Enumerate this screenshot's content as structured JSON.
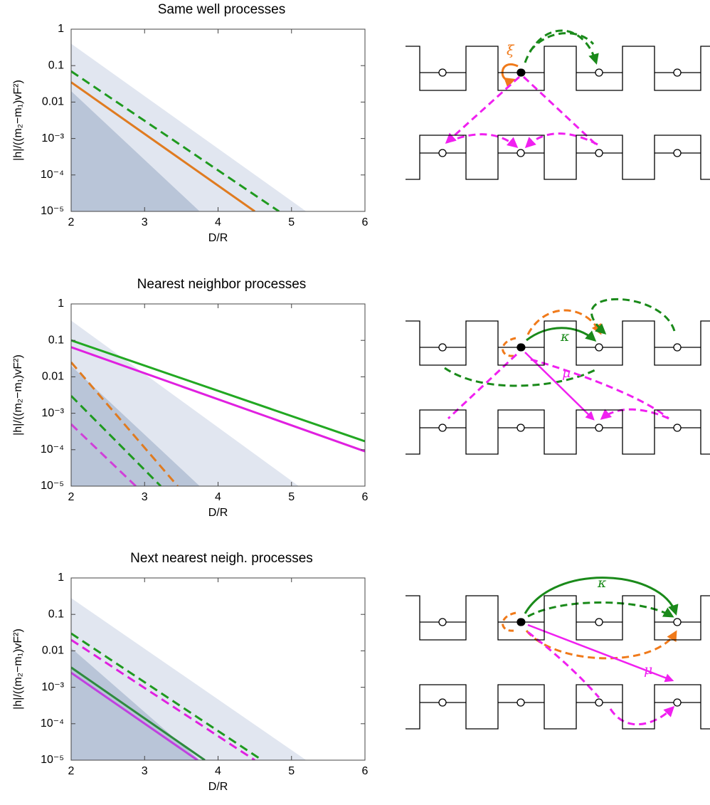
{
  "chart_data": [
    {
      "type": "line",
      "title": "Same well processes",
      "xlabel": "D/R",
      "ylabel": "|h|/((m₂−m₁)vF²)",
      "xlim": [
        2,
        6
      ],
      "ylim": [
        1e-05,
        1
      ],
      "log_y": true,
      "xticks": [
        2,
        3,
        4,
        5,
        6
      ],
      "yticks": [
        1,
        0.1,
        0.01,
        {
          "value": 0.001,
          "label": "10⁻³"
        },
        {
          "value": 0.0001,
          "label": "10⁻⁴"
        },
        {
          "value": 1e-05,
          "label": "10⁻⁵"
        }
      ],
      "shaded_regions": [
        {
          "color": "#e1e6f0",
          "x": [
            2,
            5.2,
            2
          ],
          "values": [
            0.4,
            1e-05,
            1e-05
          ]
        },
        {
          "color": "#b9c5d8",
          "x": [
            2,
            3.75,
            2
          ],
          "values": [
            0.02,
            1e-05,
            1e-05
          ]
        }
      ],
      "series": [
        {
          "color": "#e07b20",
          "dashed": false,
          "x": [
            2,
            4.5
          ],
          "values": [
            0.035,
            1e-05
          ]
        },
        {
          "color": "#1f9a1f",
          "dashed": true,
          "x": [
            2,
            4.83
          ],
          "values": [
            0.07,
            1e-05
          ]
        }
      ]
    },
    {
      "type": "line",
      "title": "Nearest neighbor processes",
      "xlabel": "D/R",
      "ylabel": "|h|/((m₂−m₁)vF²)",
      "xlim": [
        2,
        6
      ],
      "ylim": [
        1e-05,
        1
      ],
      "log_y": true,
      "xticks": [
        2,
        3,
        4,
        5,
        6
      ],
      "yticks": [
        1,
        0.1,
        0.01,
        {
          "value": 0.001,
          "label": "10⁻³"
        },
        {
          "value": 0.0001,
          "label": "10⁻⁴"
        },
        {
          "value": 1e-05,
          "label": "10⁻⁵"
        }
      ],
      "shaded_regions": [
        {
          "color": "#e1e6f0",
          "x": [
            2,
            5.1,
            2
          ],
          "values": [
            0.35,
            1e-05,
            1e-05
          ]
        },
        {
          "color": "#b9c5d8",
          "x": [
            2,
            3.75,
            2
          ],
          "values": [
            0.02,
            1e-05,
            1e-05
          ]
        }
      ],
      "series": [
        {
          "color": "#22a822",
          "dashed": false,
          "x": [
            2,
            6
          ],
          "values": [
            0.1,
            0.00017
          ]
        },
        {
          "color": "#e020e0",
          "dashed": false,
          "x": [
            2,
            6
          ],
          "values": [
            0.065,
            9e-05
          ]
        },
        {
          "color": "#e07b20",
          "dashed": true,
          "x": [
            2,
            3.45
          ],
          "values": [
            0.025,
            1e-05
          ]
        },
        {
          "color": "#1f9a1f",
          "dashed": true,
          "x": [
            2,
            3.22
          ],
          "values": [
            0.003,
            1e-05
          ]
        },
        {
          "color": "#d040d8",
          "dashed": true,
          "x": [
            2,
            2.88
          ],
          "values": [
            0.0005,
            1e-05
          ]
        }
      ]
    },
    {
      "type": "line",
      "title": "Next nearest neigh. processes",
      "xlabel": "D/R",
      "ylabel": "|h|/((m₂−m₁)vF²)",
      "xlim": [
        2,
        6
      ],
      "ylim": [
        1e-05,
        1
      ],
      "log_y": true,
      "xticks": [
        2,
        3,
        4,
        5,
        6
      ],
      "yticks": [
        1,
        0.1,
        0.01,
        {
          "value": 0.001,
          "label": "10⁻³"
        },
        {
          "value": 0.0001,
          "label": "10⁻⁴"
        },
        {
          "value": 1e-05,
          "label": "10⁻⁵"
        }
      ],
      "shaded_regions": [
        {
          "color": "#e1e6f0",
          "x": [
            2,
            5.2,
            2
          ],
          "values": [
            0.28,
            1e-05,
            1e-05
          ]
        },
        {
          "color": "#b9c5d8",
          "x": [
            2,
            3.75,
            2
          ],
          "values": [
            0.012,
            1e-05,
            1e-05
          ]
        }
      ],
      "series": [
        {
          "color": "#1f9a1f",
          "dashed": true,
          "x": [
            2,
            4.6
          ],
          "values": [
            0.03,
            1e-05
          ]
        },
        {
          "color": "#e020e0",
          "dashed": true,
          "x": [
            2,
            4.5
          ],
          "values": [
            0.02,
            1e-05
          ]
        },
        {
          "color": "#2e8b3e",
          "dashed": false,
          "x": [
            2,
            3.82
          ],
          "values": [
            0.0035,
            1e-05
          ]
        },
        {
          "color": "#c040e0",
          "dashed": false,
          "x": [
            2,
            3.72
          ],
          "values": [
            0.0025,
            1e-05
          ]
        }
      ]
    }
  ],
  "diagrams": [
    {
      "labels": [
        "ξ"
      ]
    },
    {
      "labels": [
        "κ",
        "μ"
      ]
    },
    {
      "labels": [
        "κ",
        "μ"
      ]
    }
  ]
}
